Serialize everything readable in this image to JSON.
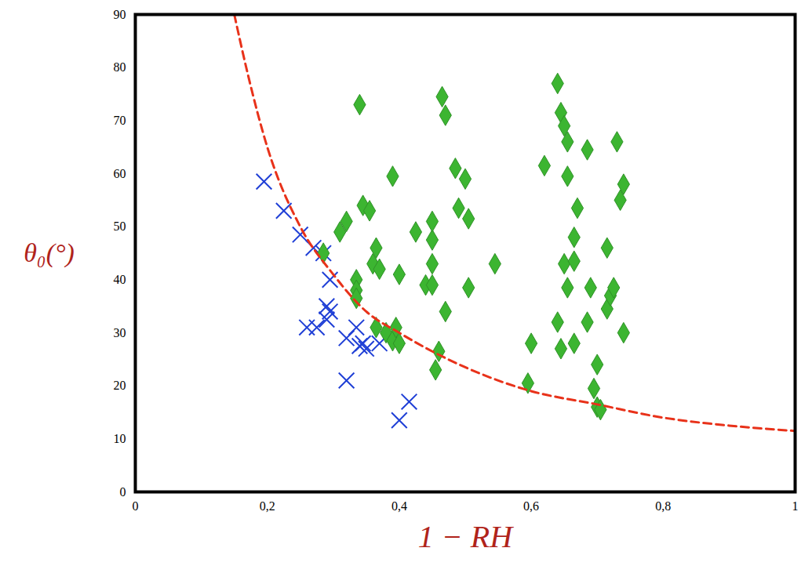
{
  "chart_data": {
    "type": "scatter",
    "x_label": "1 − RH",
    "y_label": "θ₀(°)",
    "xlim": [
      0,
      1
    ],
    "ylim": [
      0,
      90
    ],
    "xticks": [
      0,
      {
        "value": 0.2,
        "label": "0,2"
      },
      {
        "value": 0.4,
        "label": "0,4"
      },
      {
        "value": 0.6,
        "label": "0,6"
      },
      {
        "value": 0.8,
        "label": "0,8"
      },
      1
    ],
    "yticks": [
      0,
      10,
      20,
      30,
      40,
      50,
      60,
      70,
      80,
      90
    ],
    "grid": false,
    "series": [
      {
        "type": "scatter",
        "marker": "x",
        "color": "#1f3fd6",
        "points": [
          [
            0.195,
            58.5
          ],
          [
            0.225,
            53
          ],
          [
            0.25,
            48.5
          ],
          [
            0.27,
            46
          ],
          [
            0.285,
            45
          ],
          [
            0.295,
            40
          ],
          [
            0.29,
            35
          ],
          [
            0.295,
            34
          ],
          [
            0.29,
            32.5
          ],
          [
            0.26,
            31
          ],
          [
            0.275,
            31
          ],
          [
            0.32,
            21
          ],
          [
            0.32,
            29
          ],
          [
            0.335,
            31
          ],
          [
            0.34,
            27.5
          ],
          [
            0.35,
            27
          ],
          [
            0.37,
            28
          ],
          [
            0.345,
            28
          ],
          [
            0.4,
            13.5
          ],
          [
            0.415,
            17
          ]
        ]
      },
      {
        "type": "scatter",
        "marker": "diamond",
        "color": "#3cb531",
        "points": [
          [
            0.285,
            45
          ],
          [
            0.31,
            49
          ],
          [
            0.32,
            51
          ],
          [
            0.34,
            73
          ],
          [
            0.345,
            54
          ],
          [
            0.355,
            53
          ],
          [
            0.335,
            40
          ],
          [
            0.335,
            38
          ],
          [
            0.335,
            36.5
          ],
          [
            0.365,
            46
          ],
          [
            0.36,
            43
          ],
          [
            0.37,
            42
          ],
          [
            0.365,
            31
          ],
          [
            0.38,
            30
          ],
          [
            0.39,
            28.5
          ],
          [
            0.395,
            31
          ],
          [
            0.4,
            28
          ],
          [
            0.39,
            59.5
          ],
          [
            0.4,
            41
          ],
          [
            0.425,
            49
          ],
          [
            0.44,
            39
          ],
          [
            0.45,
            39
          ],
          [
            0.45,
            43
          ],
          [
            0.45,
            47.5
          ],
          [
            0.45,
            51
          ],
          [
            0.455,
            23
          ],
          [
            0.46,
            26.5
          ],
          [
            0.465,
            74.5
          ],
          [
            0.47,
            71
          ],
          [
            0.47,
            34
          ],
          [
            0.485,
            61
          ],
          [
            0.49,
            53.5
          ],
          [
            0.5,
            59
          ],
          [
            0.505,
            51.5
          ],
          [
            0.505,
            38.5
          ],
          [
            0.545,
            43
          ],
          [
            0.595,
            20.5
          ],
          [
            0.6,
            28
          ],
          [
            0.62,
            61.5
          ],
          [
            0.64,
            77
          ],
          [
            0.64,
            32
          ],
          [
            0.645,
            71.5
          ],
          [
            0.645,
            27
          ],
          [
            0.65,
            43
          ],
          [
            0.65,
            69
          ],
          [
            0.655,
            66
          ],
          [
            0.655,
            59.5
          ],
          [
            0.655,
            38.5
          ],
          [
            0.665,
            48
          ],
          [
            0.665,
            43.5
          ],
          [
            0.665,
            28
          ],
          [
            0.67,
            53.5
          ],
          [
            0.685,
            64.5
          ],
          [
            0.685,
            32
          ],
          [
            0.69,
            38.5
          ],
          [
            0.695,
            19.5
          ],
          [
            0.7,
            24
          ],
          [
            0.7,
            16
          ],
          [
            0.705,
            15.5
          ],
          [
            0.715,
            46
          ],
          [
            0.715,
            34.5
          ],
          [
            0.72,
            37
          ],
          [
            0.725,
            38.5
          ],
          [
            0.73,
            66
          ],
          [
            0.735,
            55
          ],
          [
            0.74,
            58
          ],
          [
            0.74,
            30
          ]
        ]
      },
      {
        "type": "line",
        "line_style": "dashed",
        "color": "#e8321a",
        "points": [
          [
            0.15,
            90
          ],
          [
            0.17,
            79
          ],
          [
            0.2,
            65
          ],
          [
            0.25,
            50
          ],
          [
            0.3,
            41
          ],
          [
            0.35,
            34
          ],
          [
            0.4,
            30
          ],
          [
            0.5,
            23.5
          ],
          [
            0.6,
            19
          ],
          [
            0.7,
            16.5
          ],
          [
            0.8,
            14
          ],
          [
            0.9,
            12.5
          ],
          [
            1.0,
            11.5
          ]
        ]
      }
    ]
  }
}
